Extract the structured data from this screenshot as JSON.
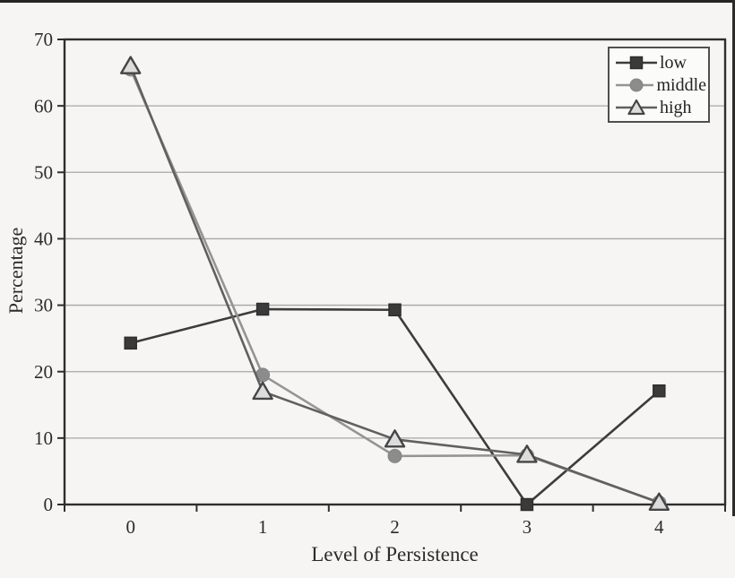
{
  "figure": {
    "background": "#f6f5f3",
    "scan_edge_color": "#242424"
  },
  "chart_data": {
    "type": "line",
    "title": "",
    "xlabel": "Level of Persistence",
    "ylabel": "Percentage",
    "categories": [
      "0",
      "1",
      "2",
      "3",
      "4"
    ],
    "ylim": [
      0,
      70
    ],
    "yticks": [
      0,
      10,
      20,
      30,
      40,
      50,
      60,
      70
    ],
    "grid": true,
    "legend_position": "top-right",
    "series": [
      {
        "name": "low",
        "marker": "square",
        "line_color": "#3c3c3c",
        "marker_fill": "#3a3a3a",
        "marker_stroke": "#2e2e2e",
        "values": [
          24.3,
          29.4,
          29.3,
          0,
          17.1
        ]
      },
      {
        "name": "middle",
        "marker": "circle",
        "line_color": "#949494",
        "marker_fill": "#8c8c8c",
        "marker_stroke": "#848484",
        "values": [
          65.5,
          19.5,
          7.3,
          7.4,
          0.3
        ]
      },
      {
        "name": "high",
        "marker": "triangle",
        "line_color": "#606060",
        "marker_fill": "#dcdcdc",
        "marker_stroke": "#454545",
        "values": [
          66,
          17,
          9.8,
          7.5,
          0.3
        ]
      }
    ],
    "colors": {
      "grid": "#a6a6a6",
      "axis": "#2e2e2e",
      "tick_text": "#2b2b2b"
    }
  }
}
